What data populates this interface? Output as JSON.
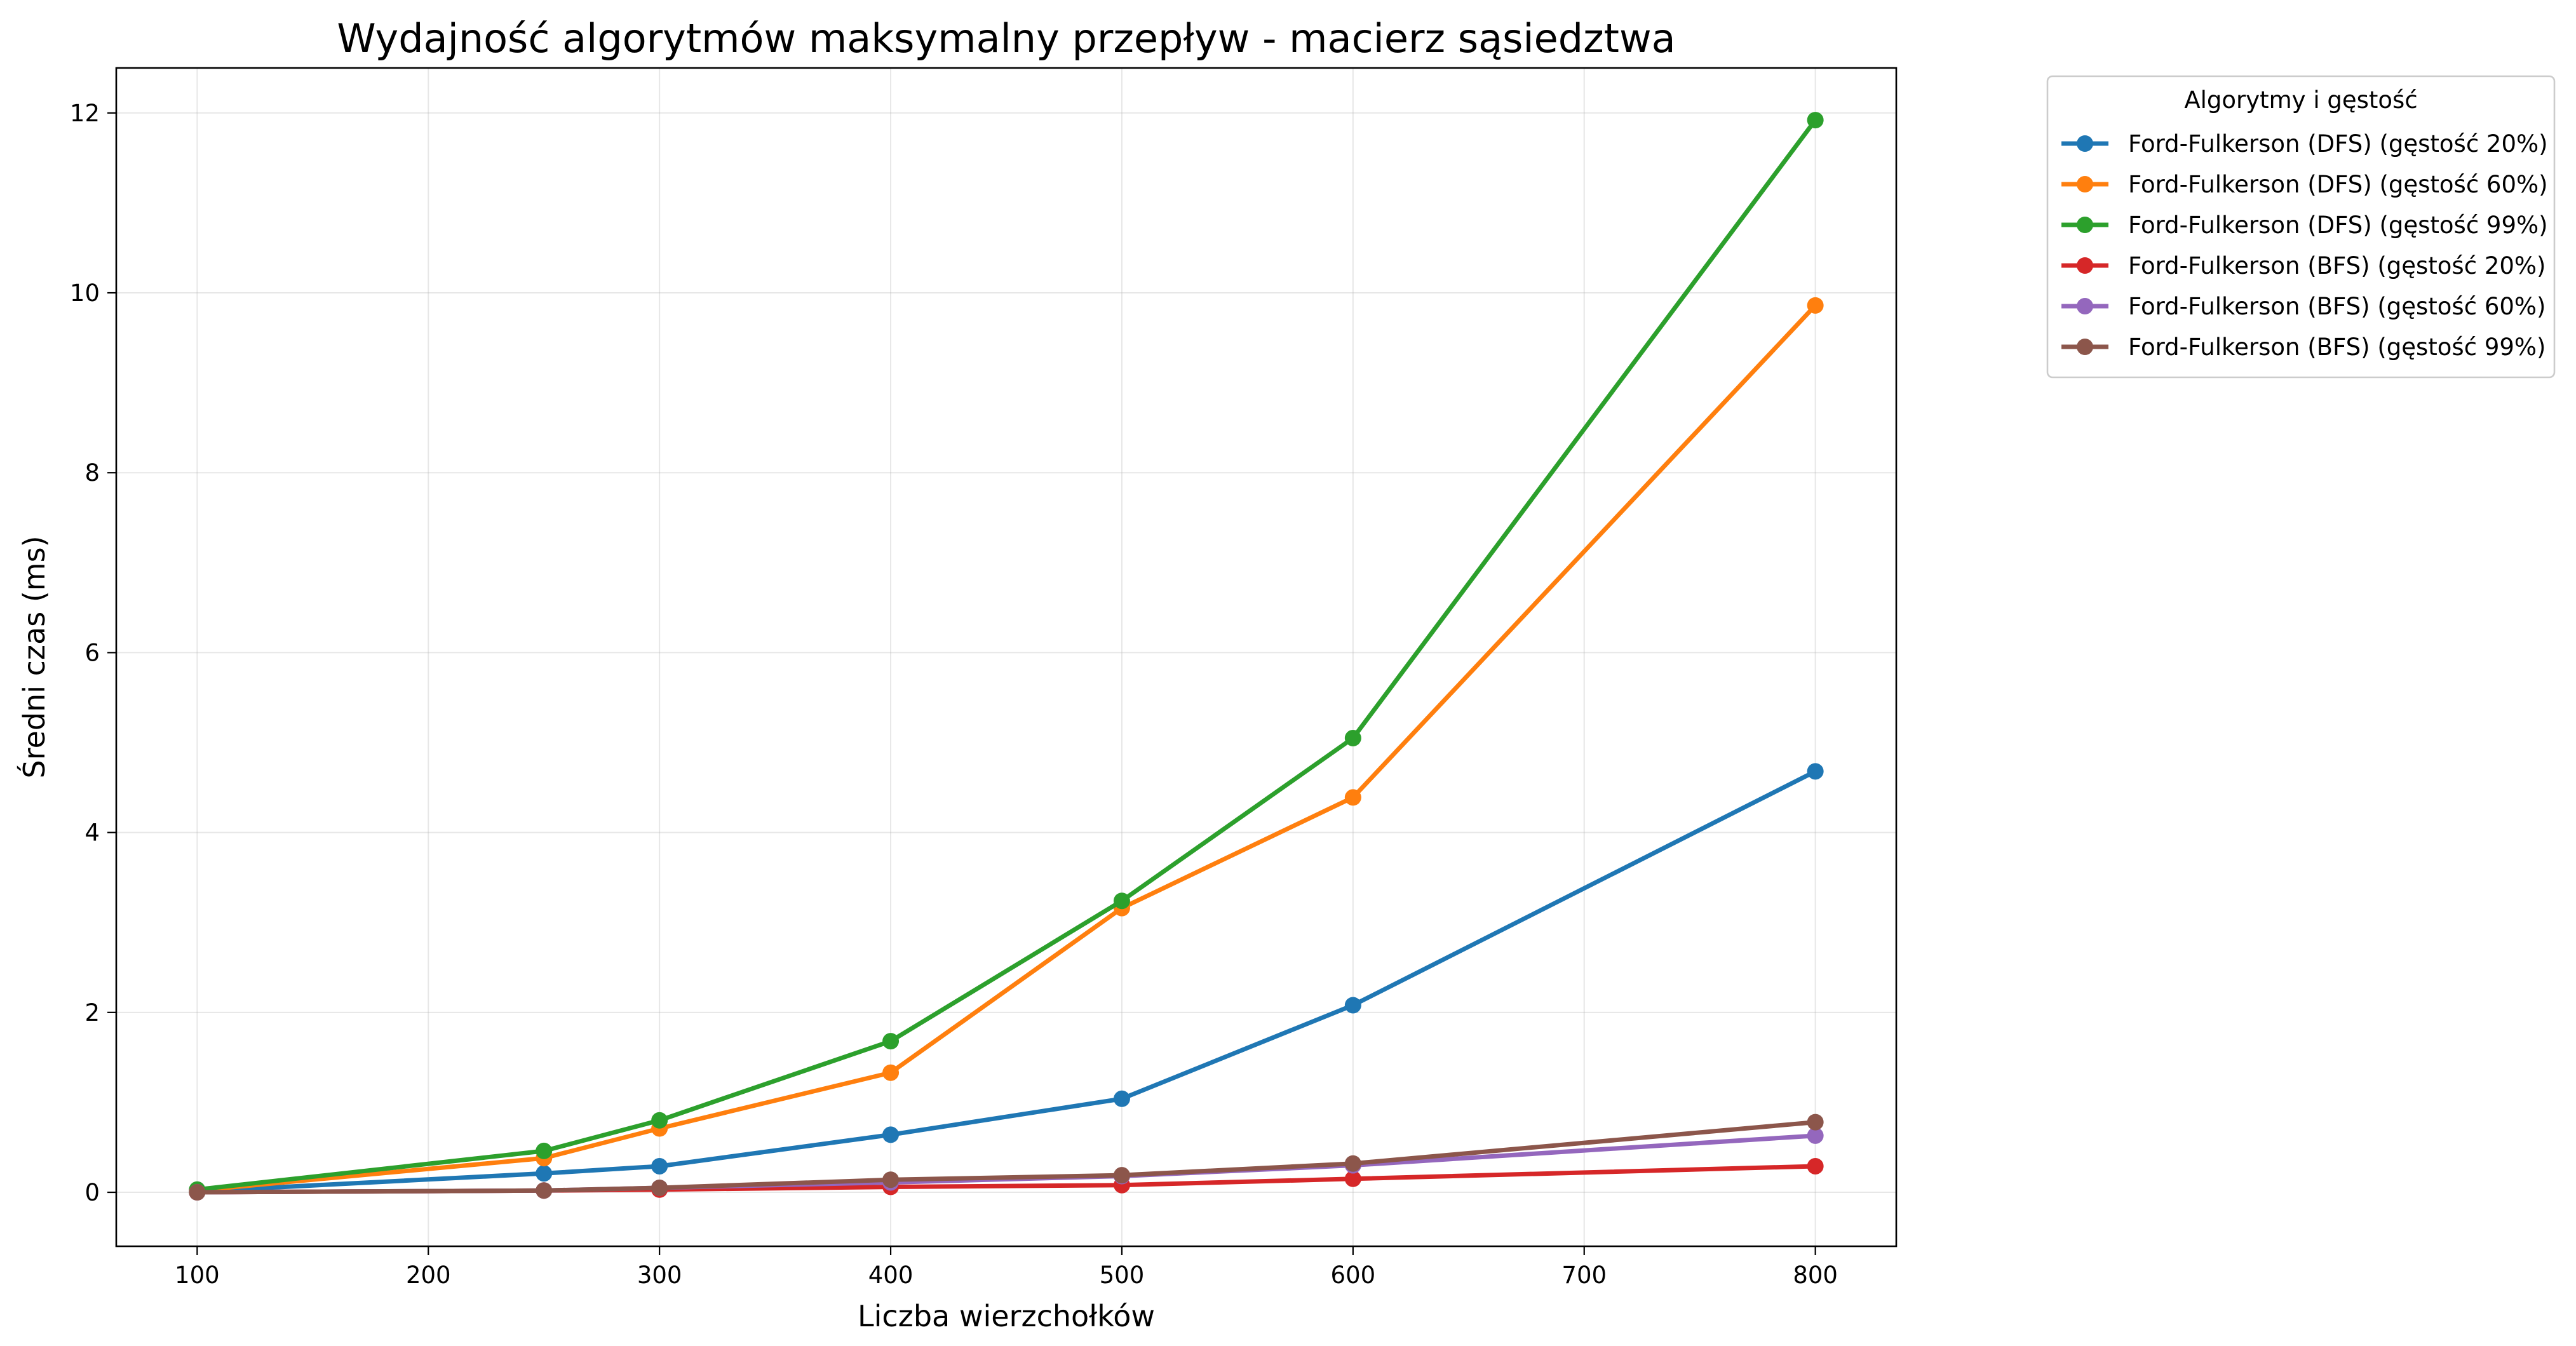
{
  "chart_data": {
    "type": "line",
    "title": "Wydajność algorytmów maksymalny przepływ - macierz sąsiedztwa",
    "xlabel": "Liczba wierzchołków",
    "ylabel": "Średni czas (ms)",
    "xlim": [
      65,
      835
    ],
    "ylim": [
      -0.6,
      12.5
    ],
    "xticks": [
      100,
      200,
      300,
      400,
      500,
      600,
      700,
      800
    ],
    "yticks": [
      0,
      2,
      4,
      6,
      8,
      10,
      12
    ],
    "grid": true,
    "legend": {
      "title": "Algorytmy i gęstość",
      "placement": "outside-top-right"
    },
    "x": [
      100,
      250,
      300,
      400,
      500,
      600,
      800
    ],
    "series": [
      {
        "name": "Ford-Fulkerson (DFS) (gęstość 20%)",
        "color": "#1f77b4",
        "values": [
          0.01,
          0.21,
          0.29,
          0.64,
          1.04,
          2.08,
          4.68
        ]
      },
      {
        "name": "Ford-Fulkerson (DFS) (gęstość 60%)",
        "color": "#ff7f0e",
        "values": [
          0.02,
          0.38,
          0.71,
          1.33,
          3.16,
          4.39,
          9.86
        ]
      },
      {
        "name": "Ford-Fulkerson (DFS) (gęstość 99%)",
        "color": "#2ca02c",
        "values": [
          0.03,
          0.46,
          0.8,
          1.68,
          3.24,
          5.05,
          11.92
        ]
      },
      {
        "name": "Ford-Fulkerson (BFS) (gęstość 20%)",
        "color": "#d62728",
        "values": [
          0.0,
          0.02,
          0.03,
          0.06,
          0.08,
          0.15,
          0.29
        ]
      },
      {
        "name": "Ford-Fulkerson (BFS) (gęstość 60%)",
        "color": "#9467bd",
        "values": [
          0.0,
          0.02,
          0.05,
          0.11,
          0.18,
          0.3,
          0.63
        ]
      },
      {
        "name": "Ford-Fulkerson (BFS) (gęstość 99%)",
        "color": "#8c564b",
        "values": [
          0.0,
          0.02,
          0.05,
          0.14,
          0.19,
          0.32,
          0.78
        ]
      }
    ]
  }
}
